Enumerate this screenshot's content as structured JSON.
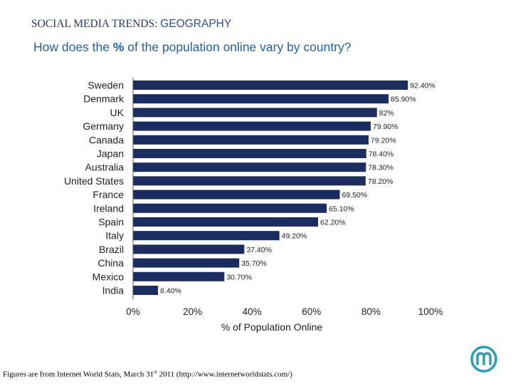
{
  "slide": {
    "header_prefix": "SOCIAL MEDIA TRENDS: ",
    "header_topic": "GEOGRAPHY",
    "subtitle_pre": "How does the ",
    "subtitle_pct": "%",
    "subtitle_post": " of the population online vary by country?",
    "footnote_pre": "Figures are from Internet World Stats, March 31",
    "footnote_sup": "st",
    "footnote_post": " 2011 (http://www.internetworldstats.com/)",
    "logo_icon": "circular-m-logo-icon"
  },
  "colors": {
    "header_serif": "#1f3a7a",
    "header_sans": "#2a4fa0",
    "subtitle": "#1f5fb0",
    "bar": "#1b2c60",
    "logo": "#2f9fb6"
  },
  "chart_data": {
    "type": "bar",
    "orientation": "horizontal",
    "title": "",
    "xlabel": "% of Population Online",
    "ylabel": "",
    "xlim": [
      0,
      100
    ],
    "xticks": [
      0,
      20,
      40,
      60,
      80,
      100
    ],
    "xtick_labels": [
      "0%",
      "20%",
      "40%",
      "60%",
      "80%",
      "100%"
    ],
    "categories": [
      "Sweden",
      "Denmark",
      "UK",
      "Germany",
      "Canada",
      "Japan",
      "Australia",
      "United States",
      "France",
      "Ireland",
      "Spain",
      "Italy",
      "Brazil",
      "China",
      "Mexico",
      "India"
    ],
    "values": [
      92.4,
      85.9,
      82,
      79.9,
      79.2,
      78.4,
      78.3,
      78.2,
      69.5,
      65.1,
      62.2,
      49.2,
      37.4,
      35.7,
      30.7,
      8.4
    ],
    "data_labels": [
      "92.40%",
      "85.90%",
      "82%",
      "79.90%",
      "79.20%",
      "78.40%",
      "78.30%",
      "78.20%",
      "69.50%",
      "65.10%",
      "62.20%",
      "49.20%",
      "37.40%",
      "35.70%",
      "30.70%",
      "8.40%"
    ],
    "grid": false,
    "legend": "none"
  }
}
